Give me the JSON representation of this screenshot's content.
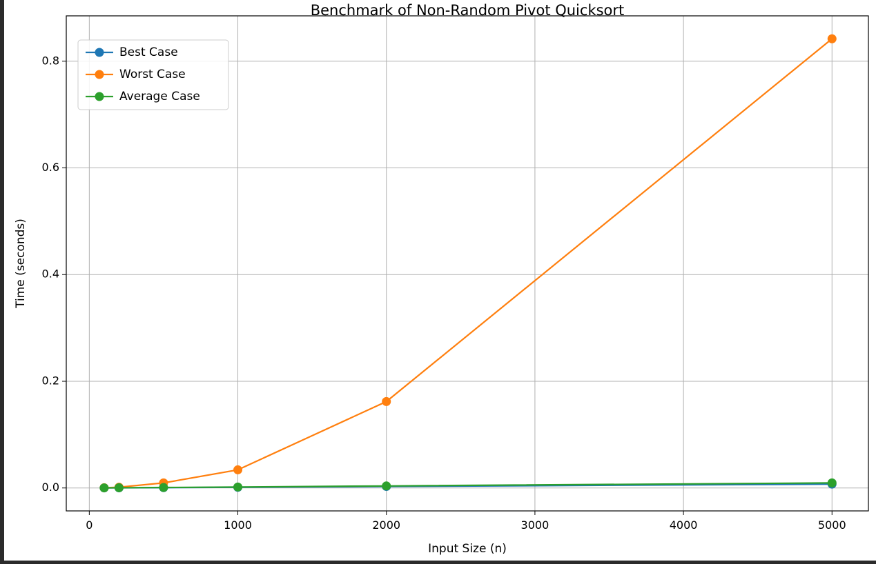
{
  "chart_data": {
    "type": "line",
    "title": "Benchmark of Non-Random Pivot Quicksort",
    "xlabel": "Input Size (n)",
    "ylabel": "Time (seconds)",
    "xlim": [
      -155,
      5245
    ],
    "ylim": [
      -0.043,
      0.885
    ],
    "x_ticks": [
      0,
      1000,
      2000,
      3000,
      4000,
      5000
    ],
    "y_ticks": [
      0.0,
      0.2,
      0.4,
      0.6,
      0.8
    ],
    "x_tick_labels": [
      "0",
      "1000",
      "2000",
      "3000",
      "4000",
      "5000"
    ],
    "y_tick_labels": [
      "0.0",
      "0.2",
      "0.4",
      "0.6",
      "0.8"
    ],
    "grid": true,
    "legend_position": "top-left",
    "x": [
      100,
      200,
      500,
      1000,
      2000,
      5000
    ],
    "series": [
      {
        "name": "Best Case",
        "color": "#1f77b4",
        "values": [
          0.0001,
          0.0002,
          0.0006,
          0.0013,
          0.0028,
          0.0072
        ]
      },
      {
        "name": "Worst Case",
        "color": "#ff7f0e",
        "values": [
          0.0004,
          0.0015,
          0.0095,
          0.034,
          0.162,
          0.842
        ]
      },
      {
        "name": "Average Case",
        "color": "#2ca02c",
        "values": [
          0.0002,
          0.0004,
          0.0009,
          0.0018,
          0.0038,
          0.0095
        ]
      }
    ]
  }
}
